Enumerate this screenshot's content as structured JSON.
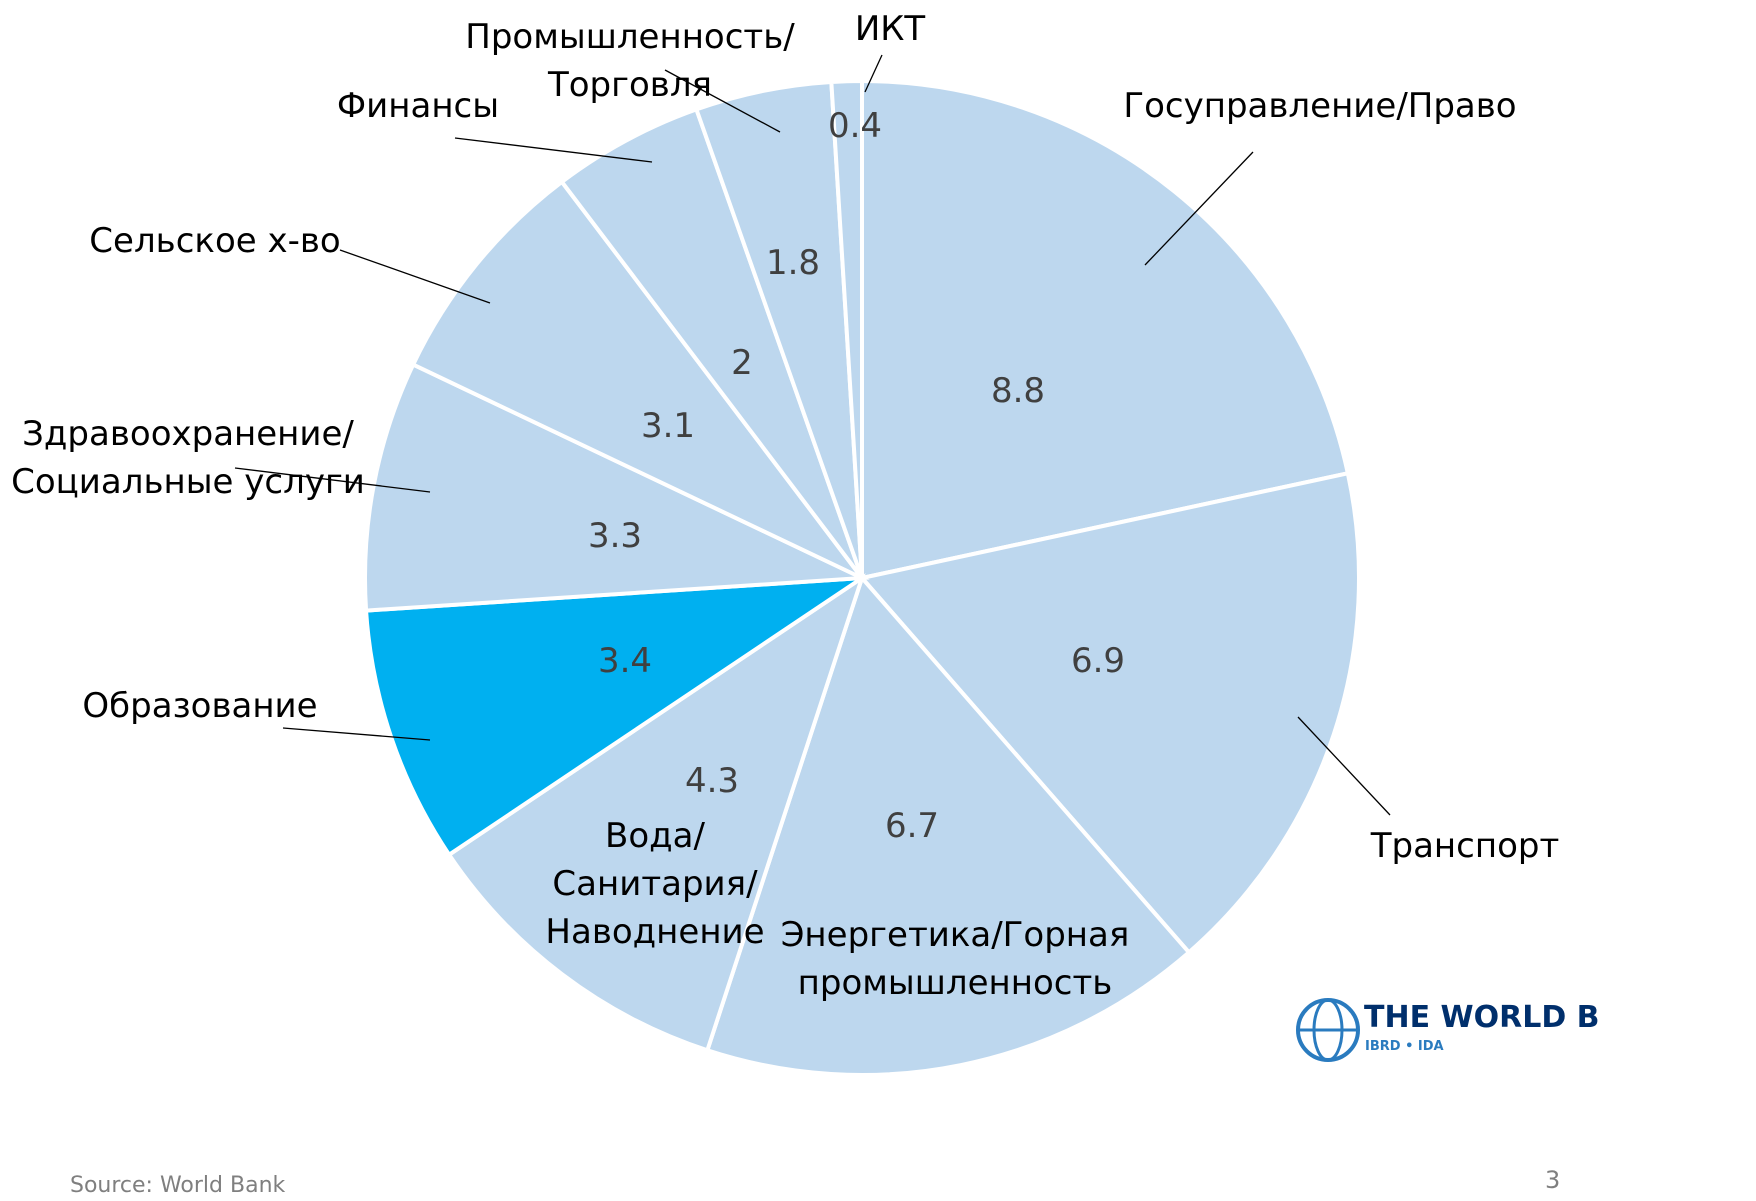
{
  "chart_data": {
    "type": "pie",
    "categories": [
      "Госуправление/Право",
      "Транспорт",
      "Энергетика/Горная\nпромышленность",
      "Вода/\nСанитария/\nНаводнение",
      "Образование",
      "Здравоохранение/\nСоциальные услуги",
      "Сельское х-во",
      "Финансы",
      "Промышленность/\nТорговля",
      "ИКТ"
    ],
    "values": [
      8.8,
      6.9,
      6.7,
      4.3,
      3.4,
      3.3,
      3.1,
      2,
      1.8,
      0.4
    ],
    "colors": [
      "#bdd7ee",
      "#bdd7ee",
      "#bdd7ee",
      "#bdd7ee",
      "#00b0f0",
      "#bdd7ee",
      "#bdd7ee",
      "#bdd7ee",
      "#bdd7ee",
      "#bdd7ee"
    ]
  },
  "footer": {
    "source": "Source: World Bank",
    "page": "3",
    "logo": "THE WORLD B",
    "logo_sub": "IBRD • IDA"
  }
}
